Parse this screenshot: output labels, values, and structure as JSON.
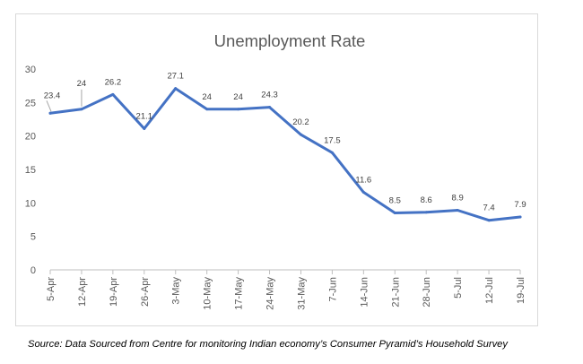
{
  "chart_data": {
    "type": "line",
    "title": "Unemployment Rate",
    "categories": [
      "5-Apr",
      "12-Apr",
      "19-Apr",
      "26-Apr",
      "3-May",
      "10-May",
      "17-May",
      "24-May",
      "31-May",
      "7-Jun",
      "14-Jun",
      "21-Jun",
      "28-Jun",
      "5-Jul",
      "12-Jul",
      "19-Jul"
    ],
    "series": [
      {
        "values": [
          23.4,
          24,
          26.2,
          21.1,
          27.1,
          24,
          24,
          24.3,
          20.2,
          17.5,
          11.6,
          8.5,
          8.6,
          8.9,
          7.4,
          7.9
        ]
      }
    ],
    "data_labels": [
      "23.4",
      "24",
      "26.2",
      "21.1",
      "27.1",
      "24",
      "24",
      "24.3",
      "20.2",
      "17.5",
      "11.6",
      "8.5",
      "8.6",
      "8.9",
      "7.4",
      "7.9"
    ],
    "ylim": [
      0,
      30
    ],
    "yticks": [
      "0",
      "5",
      "10",
      "15",
      "20",
      "25",
      "30"
    ],
    "xlabel": "",
    "ylabel": "",
    "grid": false,
    "legend": "none",
    "line_color": "#4472c4"
  },
  "source_note": "Source: Data Sourced from Centre for monitoring Indian economy’s Consumer Pyramid’s Household Survey"
}
